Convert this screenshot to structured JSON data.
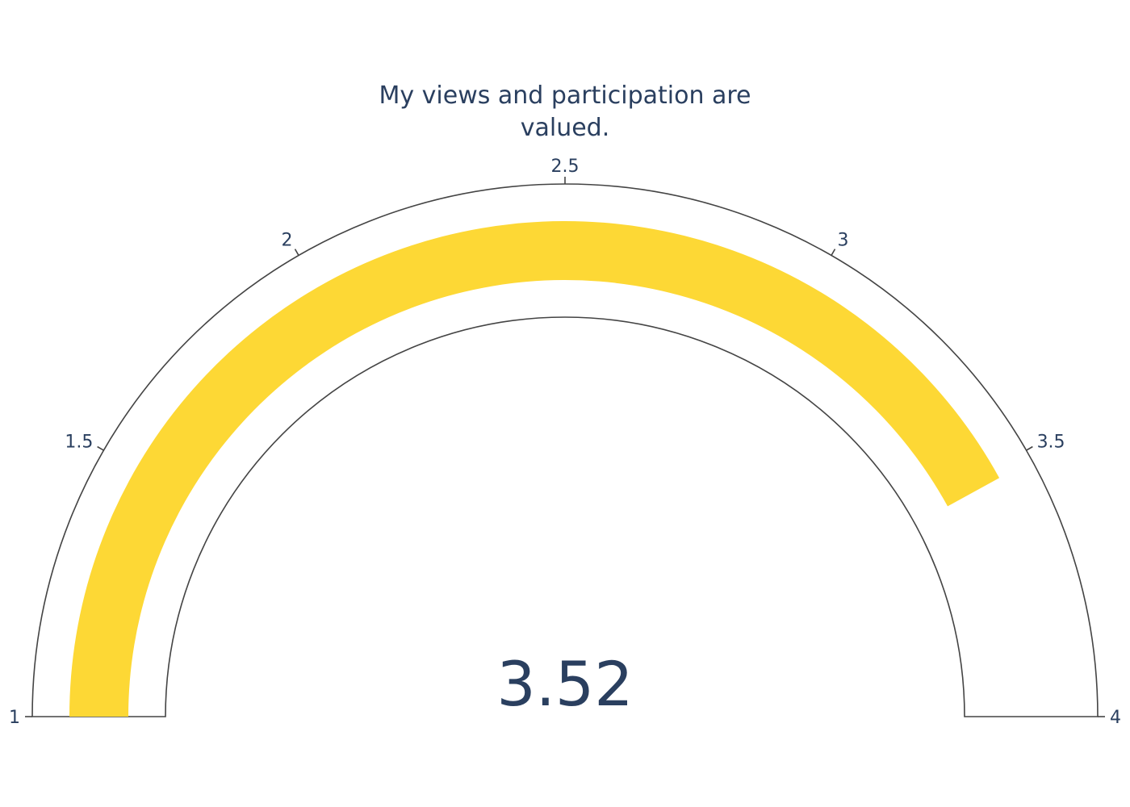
{
  "chart_data": {
    "type": "gauge",
    "title_lines": [
      "My views and participation are",
      "valued."
    ],
    "value": 3.52,
    "value_label": "3.52",
    "range": [
      1,
      4
    ],
    "ticks": [
      {
        "value": 1,
        "label": "1"
      },
      {
        "value": 1.5,
        "label": "1.5"
      },
      {
        "value": 2,
        "label": "2"
      },
      {
        "value": 2.5,
        "label": "2.5"
      },
      {
        "value": 3,
        "label": "3"
      },
      {
        "value": 3.5,
        "label": "3.5"
      },
      {
        "value": 4,
        "label": "4"
      }
    ],
    "bar_color": "#fdd835",
    "outline_color": "#444444",
    "text_color": "#2a3f5f"
  }
}
